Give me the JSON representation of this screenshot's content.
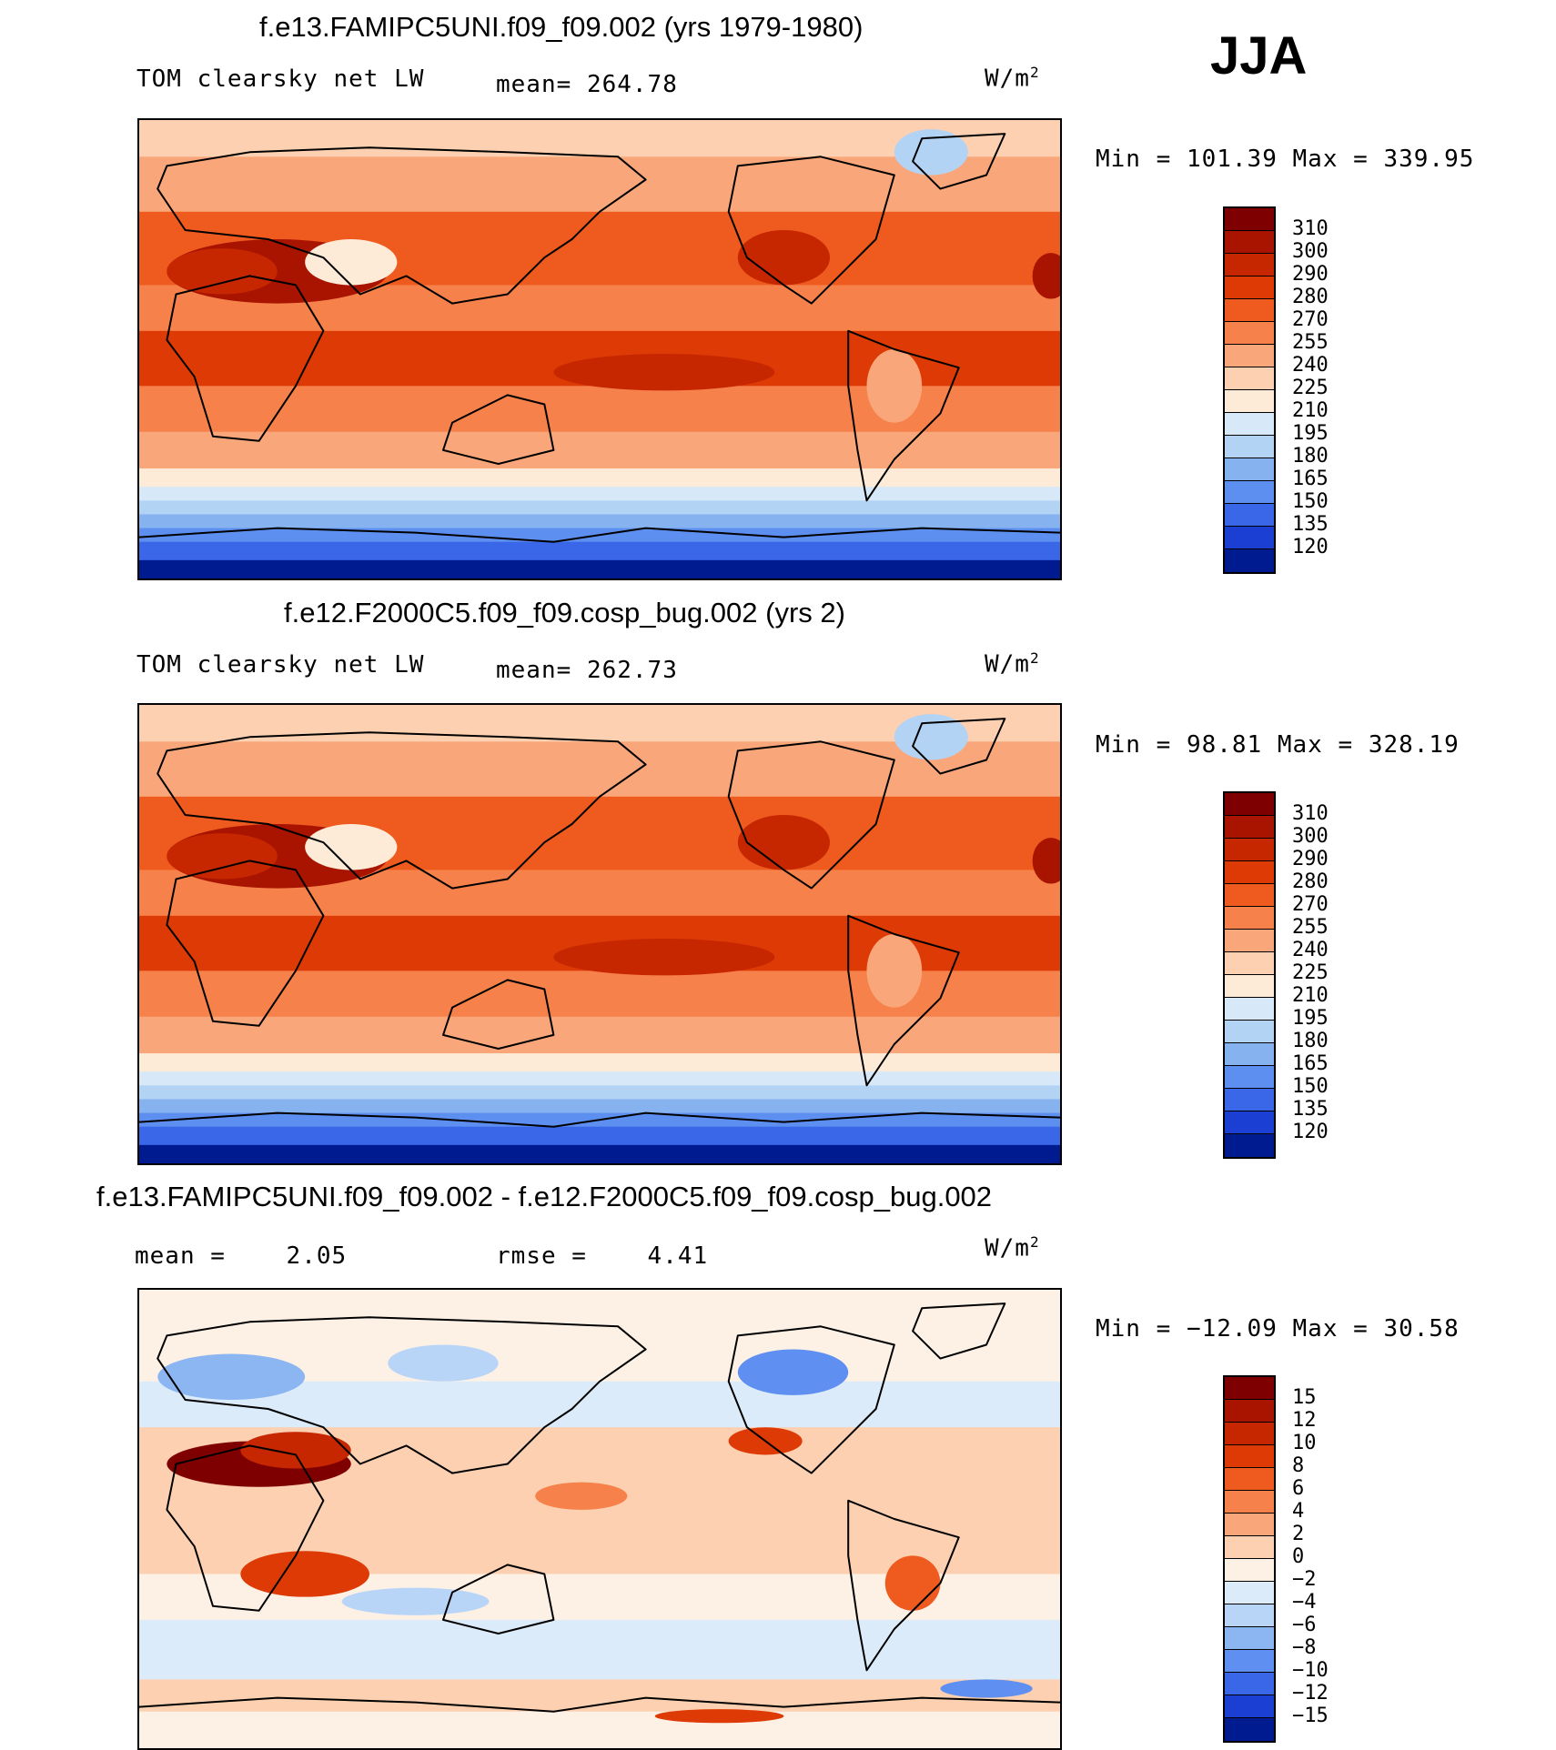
{
  "season": "JJA",
  "chart_data": [
    {
      "type": "heatmap",
      "title": "f.e13.FAMIPC5UNI.f09_f09.002 (yrs 1979-1980)",
      "variable": "TOM clearsky net LW",
      "stat_label": "mean=",
      "stat_value": "264.78",
      "units": "W/m",
      "units_sup": "2",
      "min_label": "Min =",
      "min_value": "101.39",
      "max_label": "Max =",
      "max_value": "339.95",
      "colorbar_levels": [
        "310",
        "300",
        "290",
        "280",
        "270",
        "255",
        "240",
        "225",
        "210",
        "195",
        "180",
        "165",
        "150",
        "135",
        "120"
      ],
      "colorbar_colors": [
        "#7f0000",
        "#a81400",
        "#c72700",
        "#de3a06",
        "#ef5a1e",
        "#f6814a",
        "#f9a77a",
        "#fcd0b0",
        "#fdebd8",
        "#d7e9f8",
        "#b3d3f5",
        "#86b3ef",
        "#5c8ff0",
        "#3a66e8",
        "#1a3fd2",
        "#001a8f"
      ]
    },
    {
      "type": "heatmap",
      "title": "f.e12.F2000C5.f09_f09.cosp_bug.002 (yrs 2)",
      "variable": "TOM clearsky net LW",
      "stat_label": "mean=",
      "stat_value": "262.73",
      "units": "W/m",
      "units_sup": "2",
      "min_label": "Min =",
      "min_value": "98.81",
      "max_label": "Max =",
      "max_value": "328.19",
      "colorbar_levels": [
        "310",
        "300",
        "290",
        "280",
        "270",
        "255",
        "240",
        "225",
        "210",
        "195",
        "180",
        "165",
        "150",
        "135",
        "120"
      ],
      "colorbar_colors": [
        "#7f0000",
        "#a81400",
        "#c72700",
        "#de3a06",
        "#ef5a1e",
        "#f6814a",
        "#f9a77a",
        "#fcd0b0",
        "#fdebd8",
        "#d7e9f8",
        "#b3d3f5",
        "#86b3ef",
        "#5c8ff0",
        "#3a66e8",
        "#1a3fd2",
        "#001a8f"
      ]
    },
    {
      "type": "heatmap",
      "title": "f.e13.FAMIPC5UNI.f09_f09.002 - f.e12.F2000C5.f09_f09.cosp_bug.002",
      "stat_label": "mean =",
      "stat_value": "2.05",
      "rmse_label": "rmse =",
      "rmse_value": "4.41",
      "units": "W/m",
      "units_sup": "2",
      "min_label": "Min =",
      "min_value": "−12.09",
      "max_label": "Max =",
      "max_value": "30.58",
      "colorbar_levels": [
        "15",
        "12",
        "10",
        "8",
        "6",
        "4",
        "2",
        "0",
        "−2",
        "−4",
        "−6",
        "−8",
        "−10",
        "−12",
        "−15"
      ],
      "colorbar_colors": [
        "#7f0000",
        "#a81400",
        "#c72700",
        "#de3a06",
        "#ef5a1e",
        "#f6814a",
        "#f9a77a",
        "#fcd0b0",
        "#fdf1e6",
        "#dcebfa",
        "#b8d5f7",
        "#8cb6f1",
        "#5f8ff0",
        "#3a66e8",
        "#1a3fd2",
        "#001a8f"
      ]
    }
  ]
}
